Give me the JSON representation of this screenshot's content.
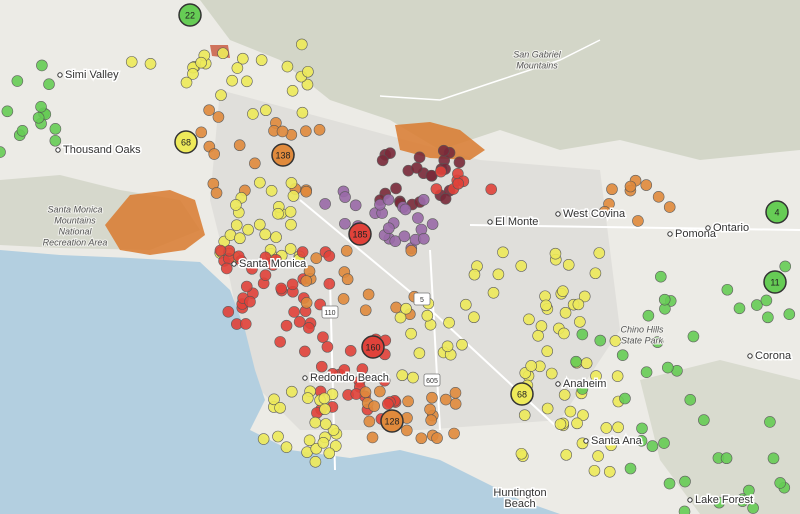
{
  "places": [
    {
      "label": "Simi Valley"
    },
    {
      "label": "Thousand Oaks"
    },
    {
      "label": "El Monte"
    },
    {
      "label": "West Covina"
    },
    {
      "label": "Pomona"
    },
    {
      "label": "Ontario"
    },
    {
      "label": "Corona"
    },
    {
      "label": "Anaheim"
    },
    {
      "label": "Santa Monica"
    },
    {
      "label": "Redondo Beach"
    },
    {
      "label": "Santa Ana"
    },
    {
      "label": "Lake Forest"
    }
  ],
  "areas": [
    {
      "lines": [
        "San Gabriel",
        "Mountains"
      ]
    },
    {
      "lines": [
        "Santa Monica",
        "Mountains",
        "National",
        "Recreation Area"
      ]
    },
    {
      "lines": [
        "Chino Hills",
        "State Park"
      ]
    },
    {
      "lines": [
        "Huntington",
        "Beach"
      ]
    }
  ],
  "clusters": [
    {
      "label": "22"
    },
    {
      "label": "68"
    },
    {
      "label": "138"
    },
    {
      "label": "185"
    },
    {
      "label": "160"
    },
    {
      "label": "128"
    },
    {
      "label": "68"
    },
    {
      "label": "4"
    },
    {
      "label": "11"
    }
  ],
  "highways": [
    {
      "label": "110"
    },
    {
      "label": "5"
    },
    {
      "label": "605"
    }
  ]
}
